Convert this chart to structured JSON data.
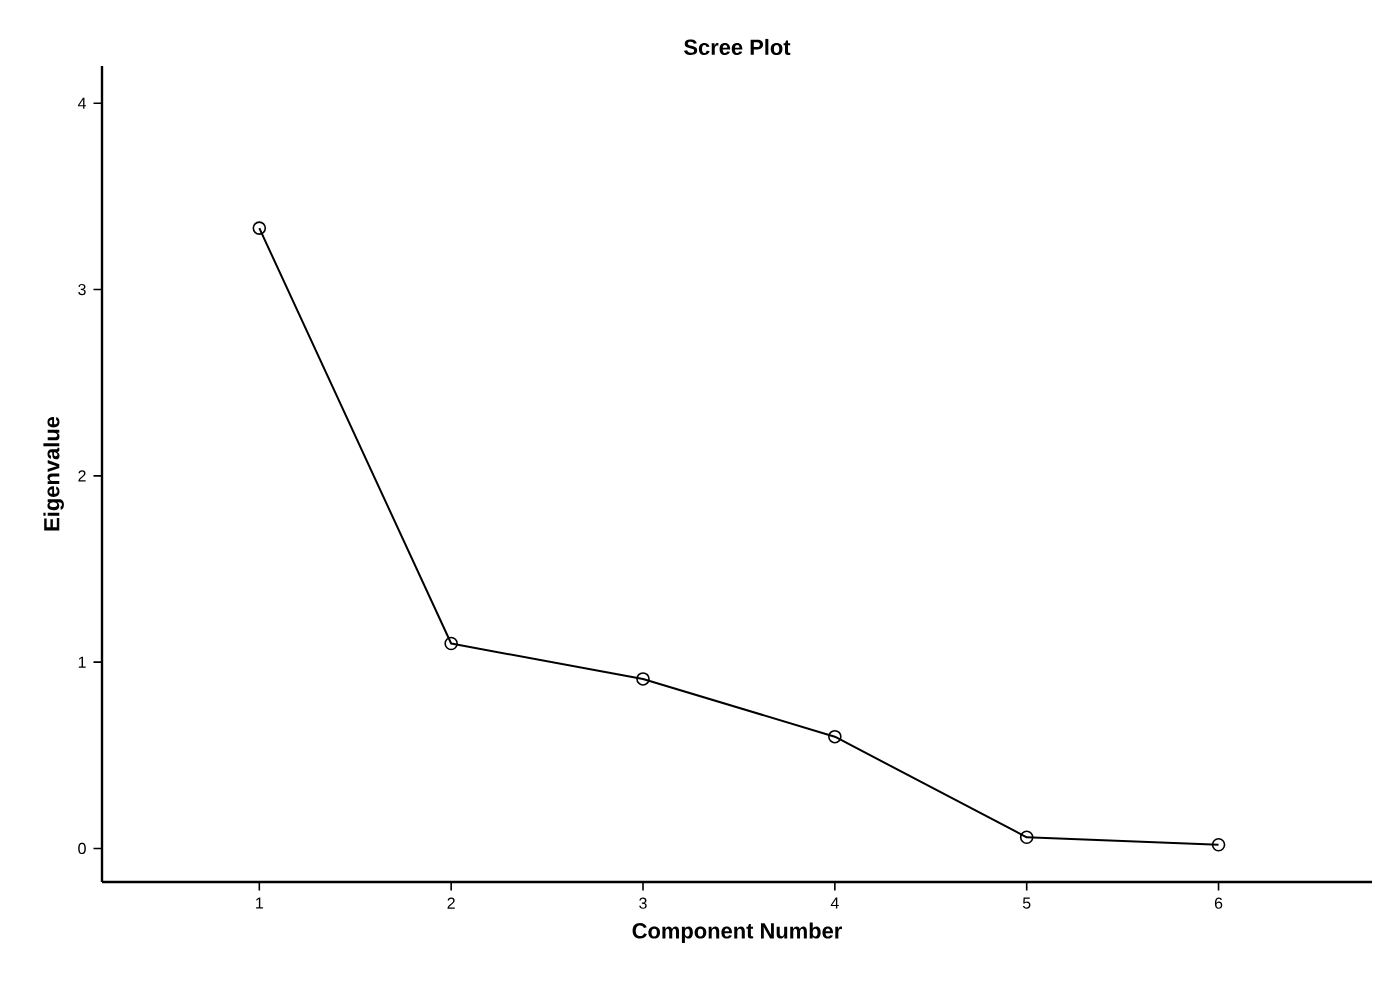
{
  "chart_data": {
    "type": "line",
    "title": "Scree Plot",
    "xlabel": "Component Number",
    "ylabel": "Eigenvalue",
    "categories": [
      "1",
      "2",
      "3",
      "4",
      "5",
      "6"
    ],
    "values": [
      3.33,
      1.1,
      0.91,
      0.6,
      0.06,
      0.02
    ],
    "color": "#000000",
    "marker": "circle",
    "ylim": [
      -0.18,
      4.2
    ],
    "yticks": [
      0,
      1,
      2,
      3,
      4
    ]
  }
}
